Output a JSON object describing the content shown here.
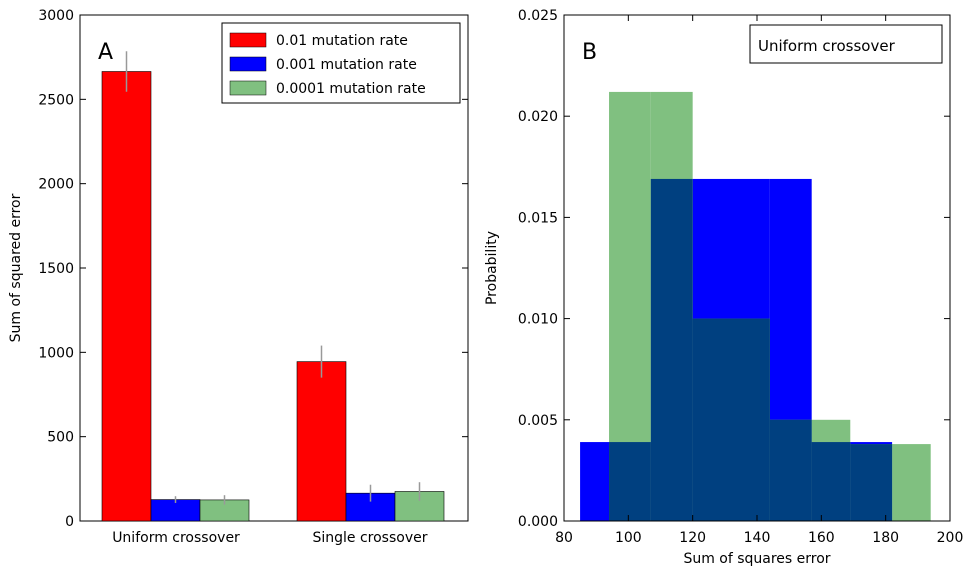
{
  "chart_data": [
    {
      "type": "bar",
      "panel_label": "A",
      "categories": [
        "Uniform crossover",
        "Single crossover"
      ],
      "series": [
        {
          "name": "0.01 mutation rate",
          "values": [
            2665,
            945
          ],
          "errors": [
            120,
            95
          ],
          "color": "#ff0000"
        },
        {
          "name": "0.001 mutation rate",
          "values": [
            127,
            165
          ],
          "errors": [
            20,
            50
          ],
          "color": "#0000ff"
        },
        {
          "name": "0.0001 mutation rate",
          "values": [
            125,
            175
          ],
          "errors": [
            28,
            55
          ],
          "color": "#80c080"
        }
      ],
      "xlabel": "",
      "ylabel": "Sum of squared error",
      "ylim": [
        0,
        3000
      ],
      "yticks": [
        0,
        500,
        1000,
        1500,
        2000,
        2500,
        3000
      ],
      "legend_position": "top-right",
      "grid": false
    },
    {
      "type": "histogram",
      "panel_label": "B",
      "legend_title": "Uniform crossover",
      "series": [
        {
          "name": "",
          "color": "#0000ff",
          "bins": [
            [
              85,
              94,
              0.0039
            ],
            [
              94,
              107,
              0.0039
            ],
            [
              107,
              120,
              0.0169
            ],
            [
              120,
              144,
              0.0169
            ],
            [
              144,
              157,
              0.0169
            ],
            [
              157,
              182,
              0.0039
            ]
          ]
        },
        {
          "name": "",
          "color": "#80c080",
          "bins": [
            [
              94,
              107,
              0.0212
            ],
            [
              107,
              120,
              0.0212
            ],
            [
              120,
              144,
              0.01
            ],
            [
              144,
              157,
              0.005
            ],
            [
              157,
              169,
              0.005
            ],
            [
              169,
              182,
              0.0038
            ],
            [
              182,
              194,
              0.0038
            ]
          ]
        }
      ],
      "overlap_color": "#004080",
      "xlabel": "Sum of squares error",
      "ylabel": "Probability",
      "xlim": [
        80,
        200
      ],
      "ylim": [
        0,
        0.025
      ],
      "xticks": [
        80,
        100,
        120,
        140,
        160,
        180,
        200
      ],
      "yticks": [
        "0.000",
        "0.005",
        "0.010",
        "0.015",
        "0.020",
        "0.025"
      ],
      "legend_position": "top-right",
      "grid": false
    }
  ]
}
